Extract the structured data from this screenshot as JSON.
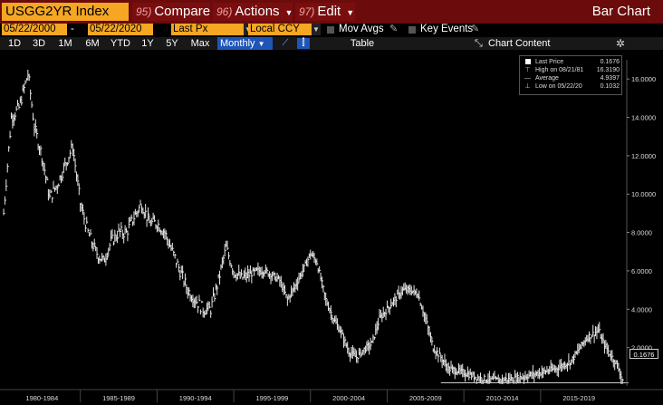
{
  "toolbar": {
    "ticker": "USGG2YR Index",
    "compare": {
      "num": "95)",
      "label": "Compare"
    },
    "actions": {
      "num": "96)",
      "label": "Actions"
    },
    "edit": {
      "num": "97)",
      "label": "Edit"
    },
    "title": "Bar Chart"
  },
  "settings": {
    "start_date": "05/22/2000",
    "end_date": "05/22/2020",
    "separator": "-",
    "price_field": "Last Px",
    "currency": "Local CCY",
    "mov_avgs": "Mov Avgs",
    "key_events": "Key Events"
  },
  "ranges": {
    "r1d": "1D",
    "r3d": "3D",
    "r1m": "1M",
    "r6m": "6M",
    "rytd": "YTD",
    "r1y": "1Y",
    "r5y": "5Y",
    "rmax": "Max",
    "monthly": "Monthly",
    "table": "Table",
    "chart_content": "Chart Content"
  },
  "legend": {
    "last": {
      "label": "Last Price",
      "value": "0.1676"
    },
    "high": {
      "label": "High on 08/21/81",
      "value": "16.3190"
    },
    "avg": {
      "label": "Average",
      "value": "4.9397"
    },
    "low": {
      "label": "Low on 05/22/20",
      "value": "0.1032"
    }
  },
  "last_tag": "0.1676",
  "colors": {
    "accent": "#f5a623",
    "bar": "#6b0b0b",
    "selected": "#1f55b8"
  },
  "chart_data": {
    "type": "line",
    "series": [
      {
        "name": "Last Price",
        "x": [
          1980,
          1980.5,
          1981,
          1981.6,
          1982,
          1982.5,
          1983,
          1983.5,
          1984,
          1984.5,
          1985,
          1985.5,
          1986,
          1986.5,
          1987,
          1987.5,
          1988,
          1988.5,
          1989,
          1989.5,
          1990,
          1990.5,
          1991,
          1991.5,
          1992,
          1992.5,
          1993,
          1993.5,
          1994,
          1994.5,
          1995,
          1995.5,
          1996,
          1996.5,
          1997,
          1997.5,
          1998,
          1998.5,
          1999,
          1999.5,
          2000,
          2000.4,
          2001,
          2001.5,
          2002,
          2002.5,
          2003,
          2003.5,
          2004,
          2004.5,
          2005,
          2005.5,
          2006,
          2006.5,
          2007,
          2007.5,
          2008,
          2008.5,
          2009,
          2010,
          2011,
          2012,
          2013,
          2014,
          2015,
          2016,
          2017,
          2018,
          2018.8,
          2019,
          2019.5,
          2020,
          2020.4
        ],
        "y": [
          9.0,
          14.0,
          14.5,
          16.3,
          13.5,
          12.0,
          9.8,
          10.5,
          11.5,
          12.5,
          9.5,
          8.0,
          7.0,
          6.5,
          7.5,
          8.0,
          8.0,
          8.8,
          9.5,
          8.5,
          8.5,
          8.0,
          7.0,
          6.0,
          5.0,
          4.5,
          4.0,
          4.0,
          5.5,
          7.2,
          6.0,
          5.6,
          5.8,
          6.0,
          6.0,
          5.8,
          5.5,
          4.5,
          5.2,
          6.0,
          6.9,
          6.5,
          4.5,
          3.5,
          2.8,
          1.8,
          1.5,
          1.9,
          2.2,
          3.5,
          4.0,
          4.5,
          5.0,
          5.0,
          4.8,
          3.5,
          2.0,
          1.5,
          0.9,
          0.7,
          0.4,
          0.3,
          0.35,
          0.5,
          0.7,
          0.9,
          1.3,
          2.5,
          2.9,
          2.4,
          1.7,
          1.1,
          0.1676
        ]
      }
    ],
    "ylim": [
      0,
      17
    ],
    "yticks": [
      "16.0000",
      "14.0000",
      "12.0000",
      "10.0000",
      "8.0000",
      "6.0000",
      "4.0000",
      "2.0000"
    ],
    "xticks": [
      "1980-1984",
      "1985-1989",
      "1990-1994",
      "1995-1999",
      "2000-2004",
      "2005-2009",
      "2010-2014",
      "2015-2019"
    ],
    "grid": false,
    "legend_position": "top-right"
  }
}
